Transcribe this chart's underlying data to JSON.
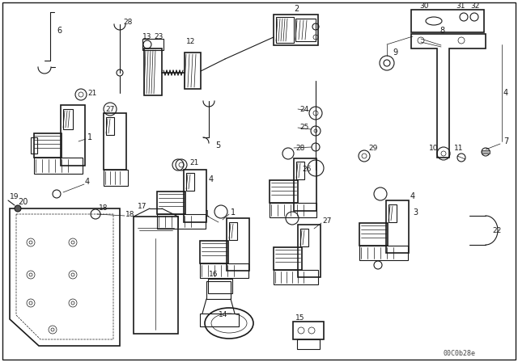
{
  "bg_color": "#f0f0f0",
  "line_color": "#1a1a1a",
  "watermark": "00C0b28e",
  "fig_width": 6.4,
  "fig_height": 4.48,
  "dpi": 100,
  "border": [
    3,
    3,
    634,
    442
  ]
}
